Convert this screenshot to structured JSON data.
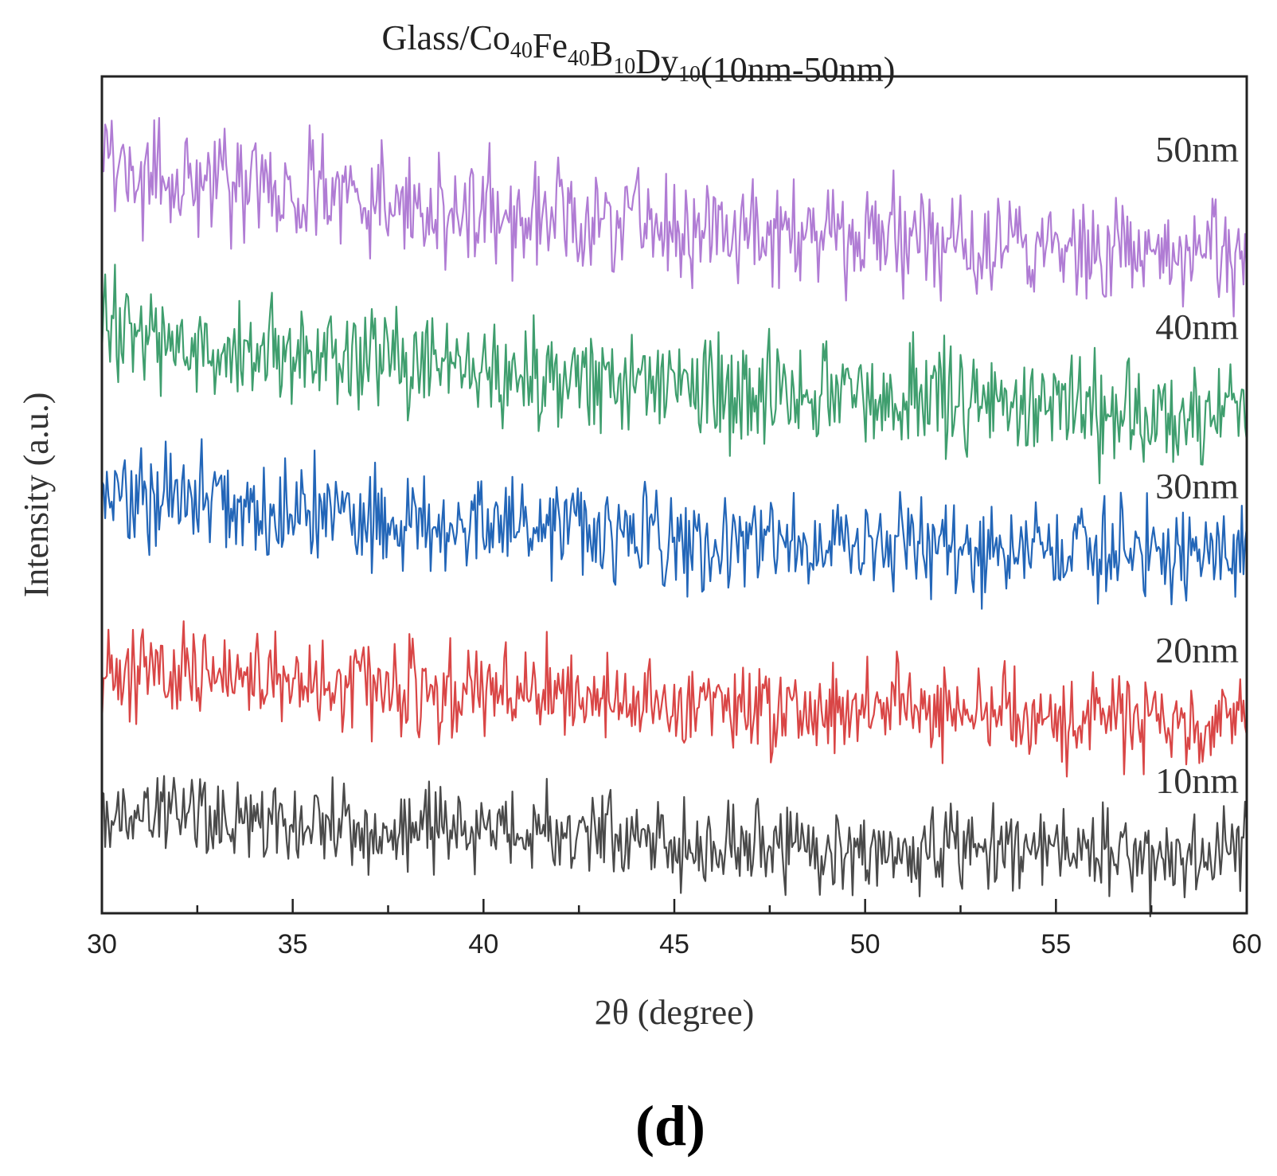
{
  "chart_data": {
    "type": "line",
    "title": {
      "prefix": "Glass/",
      "parts": [
        {
          "el": "Co",
          "sub": "40"
        },
        {
          "el": "Fe",
          "sub": "40"
        },
        {
          "el": "B",
          "sub": "10"
        },
        {
          "el": "Dy",
          "sub": "10"
        }
      ],
      "suffix": "(10nm-50nm)"
    },
    "xlabel": "2θ (degree)",
    "ylabel": "Intensity (a.u.)",
    "xlim": [
      30,
      60
    ],
    "ylim": [
      0,
      10
    ],
    "xticks": [
      30,
      35,
      40,
      45,
      50,
      55,
      60
    ],
    "xtick_labels": [
      "30",
      "35",
      "40",
      "45",
      "50",
      "55",
      "60"
    ],
    "y_ticks_shown": false,
    "panel_label": "(d)",
    "series": [
      {
        "name": "50nm",
        "color": "#b07cd4",
        "start": 8.9,
        "end": 7.9,
        "amplitude": 0.45,
        "seed": 5
      },
      {
        "name": "40nm",
        "color": "#3f9e6e",
        "start": 6.9,
        "end": 6.0,
        "amplitude": 0.45,
        "seed": 4
      },
      {
        "name": "30nm",
        "color": "#2366b8",
        "start": 5.0,
        "end": 4.3,
        "amplitude": 0.4,
        "seed": 3
      },
      {
        "name": "20nm",
        "color": "#d94646",
        "start": 2.9,
        "end": 2.3,
        "amplitude": 0.4,
        "seed": 2
      },
      {
        "name": "10nm",
        "color": "#4a4a4a",
        "start": 1.2,
        "end": 0.7,
        "amplitude": 0.35,
        "seed": 1
      }
    ]
  }
}
